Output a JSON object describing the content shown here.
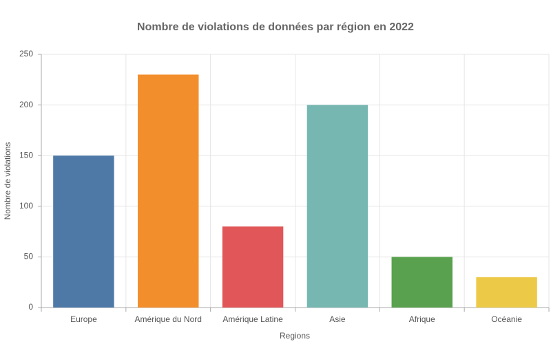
{
  "chart_data": {
    "type": "bar",
    "title": "Nombre de violations de données par région en 2022",
    "x_label": "Regions",
    "y_label": "Nombre de violations",
    "categories": [
      "Europe",
      "Amérique du Nord",
      "Amérique Latine",
      "Asie",
      "Afrique",
      "Océanie"
    ],
    "values": [
      150,
      230,
      80,
      200,
      50,
      30
    ],
    "colors": [
      "#4e79a7",
      "#f28e2b",
      "#e15759",
      "#76b7b2",
      "#59a14f",
      "#edc948"
    ],
    "ylim": [
      0,
      250
    ],
    "yticks": [
      0,
      50,
      100,
      150,
      200,
      250
    ],
    "grid": true
  }
}
